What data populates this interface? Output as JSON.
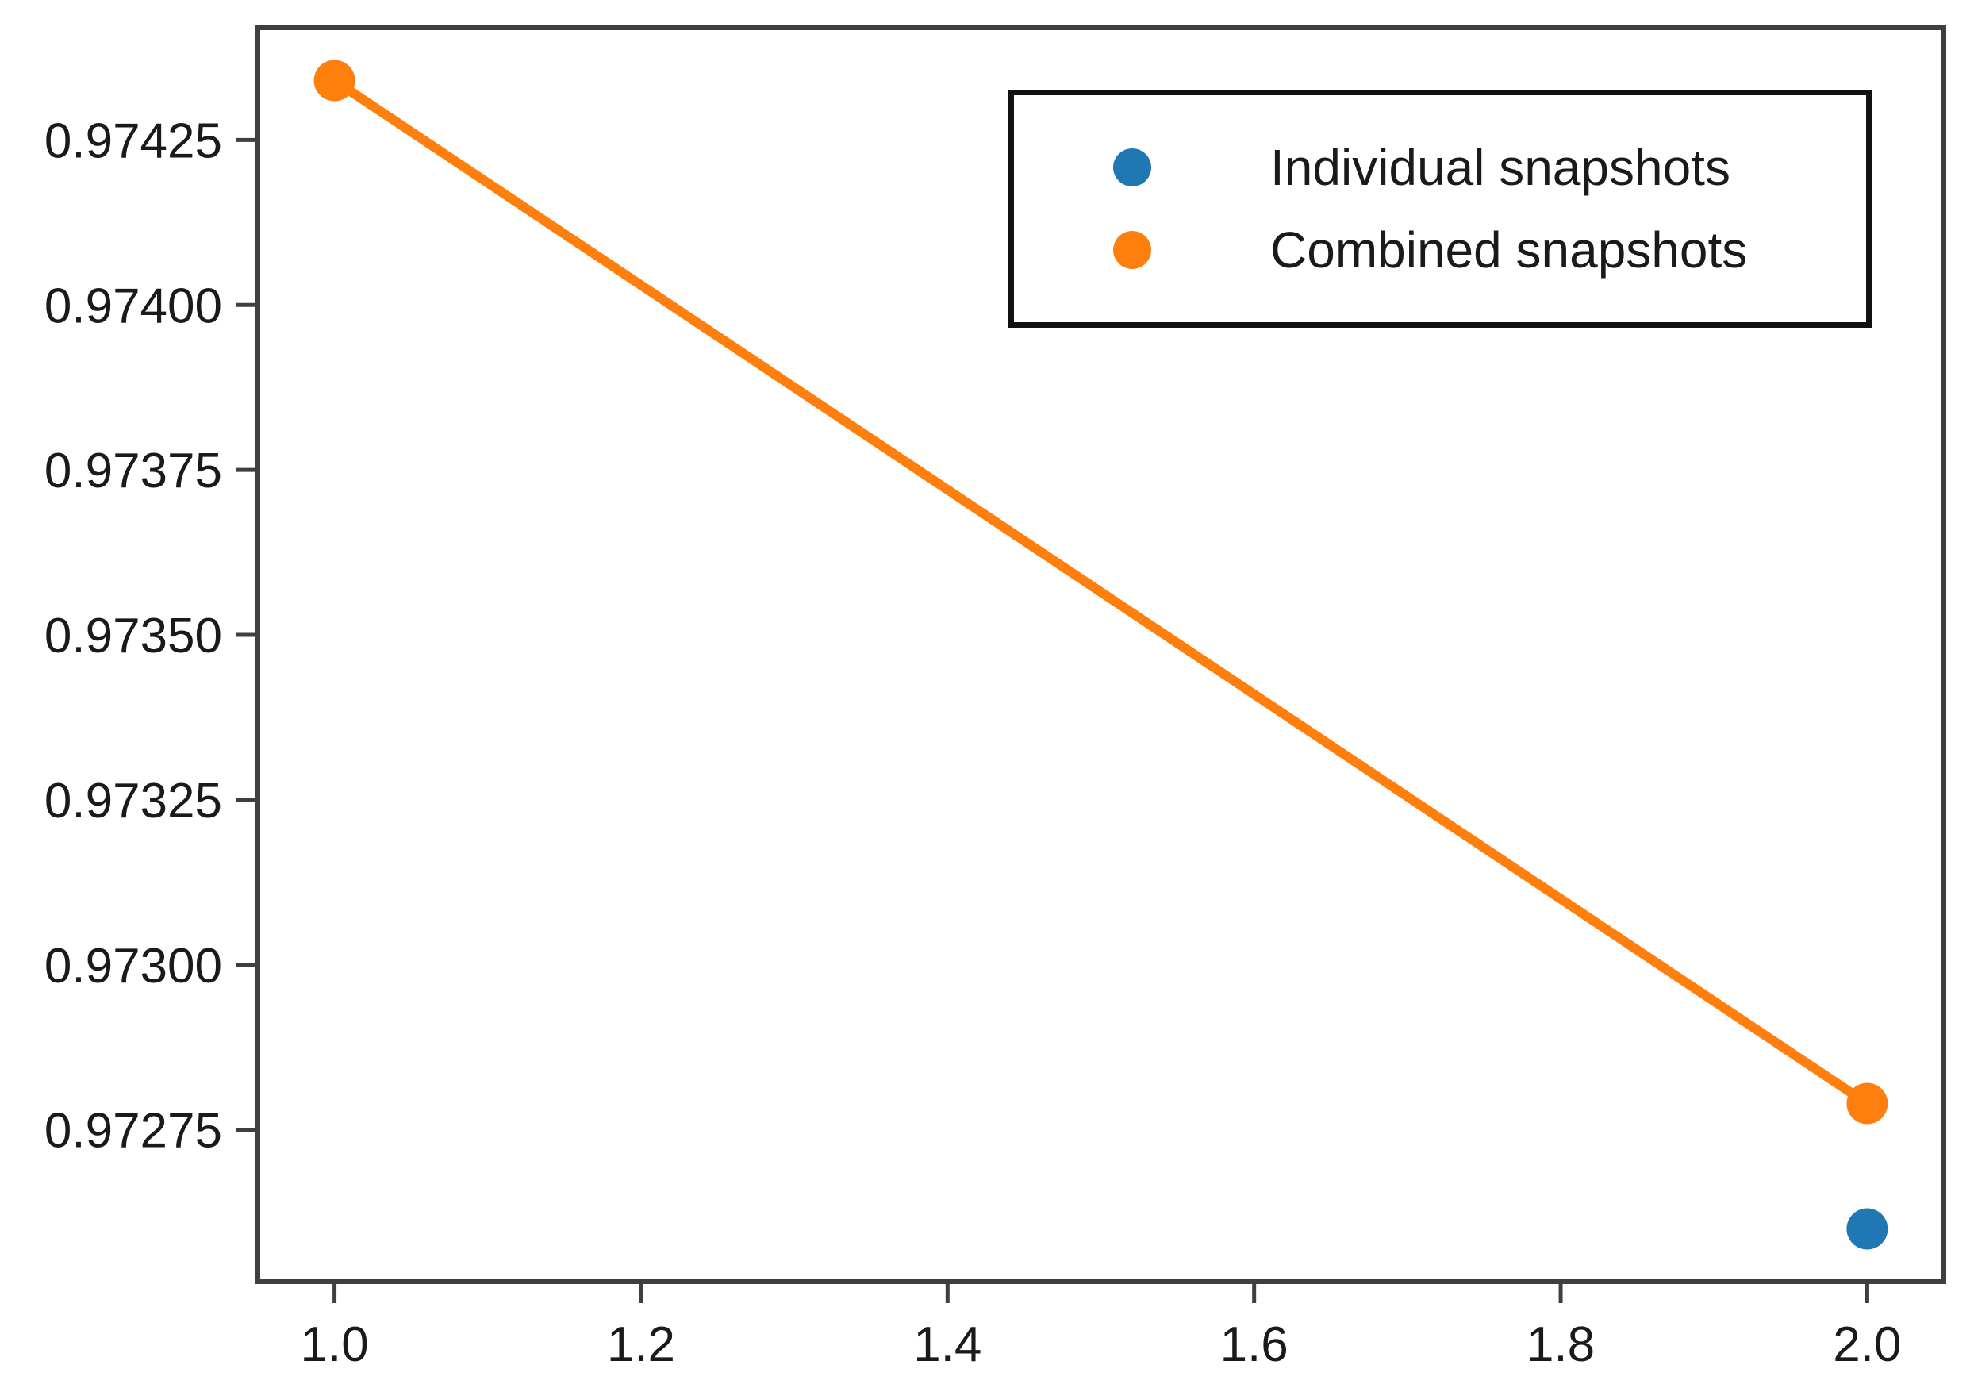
{
  "chart_data": {
    "type": "scatter",
    "title": "",
    "xlabel": "",
    "ylabel": "",
    "xlim": [
      0.95,
      2.05
    ],
    "ylim": [
      0.97252,
      0.97442
    ],
    "x_tick_labels": [
      "1.0",
      "1.2",
      "1.4",
      "1.6",
      "1.8",
      "2.0"
    ],
    "y_tick_labels": [
      "0.97275",
      "0.97300",
      "0.97325",
      "0.97350",
      "0.97375",
      "0.97400",
      "0.97425"
    ],
    "grid": false,
    "legend_position": "upper-right",
    "series": [
      {
        "name": "Individual snapshots",
        "color": "#1f77b4",
        "marker": "circle",
        "line": false,
        "points": [
          [
            2.0,
            0.9726
          ]
        ]
      },
      {
        "name": "Combined snapshots",
        "color": "#ff7f0e",
        "marker": "circle",
        "line": true,
        "points": [
          [
            1.0,
            0.97434
          ],
          [
            2.0,
            0.97279
          ]
        ]
      }
    ],
    "axis_color": "#3f3f3f",
    "tick_label_color": "#1a1a1a",
    "background_color": "#ffffff"
  }
}
